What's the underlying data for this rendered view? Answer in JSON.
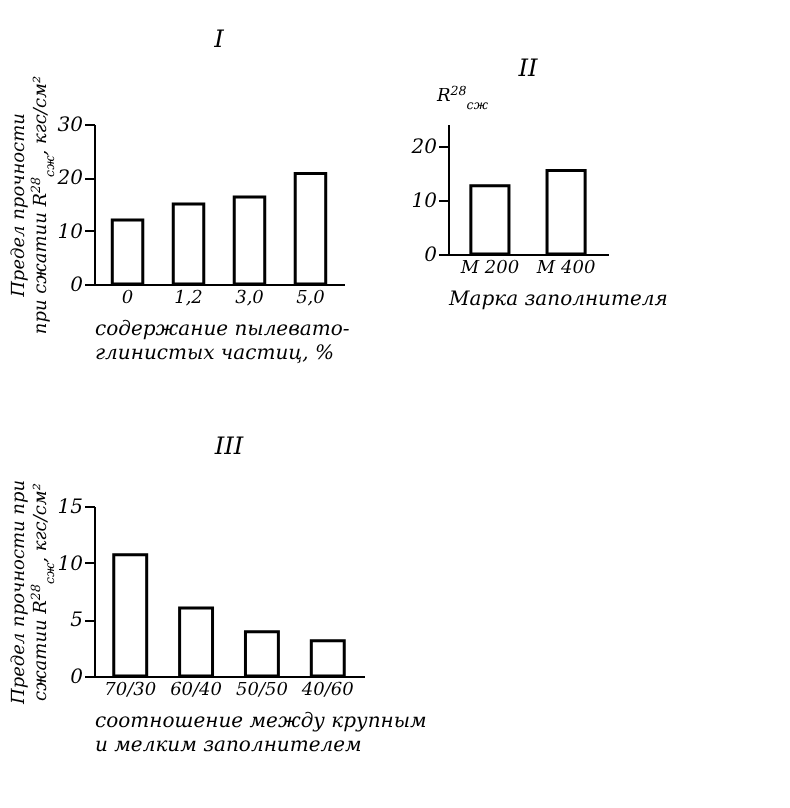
{
  "chart_data": [
    {
      "type": "bar",
      "title": "I",
      "categories": [
        "0",
        "1,2",
        "3,0",
        "5,0"
      ],
      "values": [
        12,
        15,
        16.3,
        20.7
      ],
      "ylim": [
        0,
        30
      ],
      "yticks": [
        0,
        10,
        20,
        30
      ],
      "ylabel": "Предел прочности\nпри сжатии R$^{28}$$_{сж}$, кгс/см²",
      "xlabel": "содержание пылевато-\nглинистых частиц, %"
    },
    {
      "type": "bar",
      "title": "II",
      "categories": [
        "М 200",
        "М 400"
      ],
      "values": [
        12.6,
        15.4
      ],
      "ylim": [
        0,
        24
      ],
      "yticks": [
        0,
        10,
        20
      ],
      "ylabel": "R$^{28}$$_{сж}$",
      "xlabel": "Марка заполнителя"
    },
    {
      "type": "bar",
      "title": "III",
      "categories": [
        "70/30",
        "60/40",
        "50/50",
        "40/60"
      ],
      "values": [
        10.7,
        6,
        3.9,
        3.1
      ],
      "ylim": [
        0,
        15
      ],
      "yticks": [
        0,
        5,
        10,
        15
      ],
      "ylabel": "Предел прочности при\nсжатии R$^{28}$$_{сж}$, кгс/см²",
      "xlabel": "соотношение между крупным\nи мелким заполнителем"
    }
  ]
}
